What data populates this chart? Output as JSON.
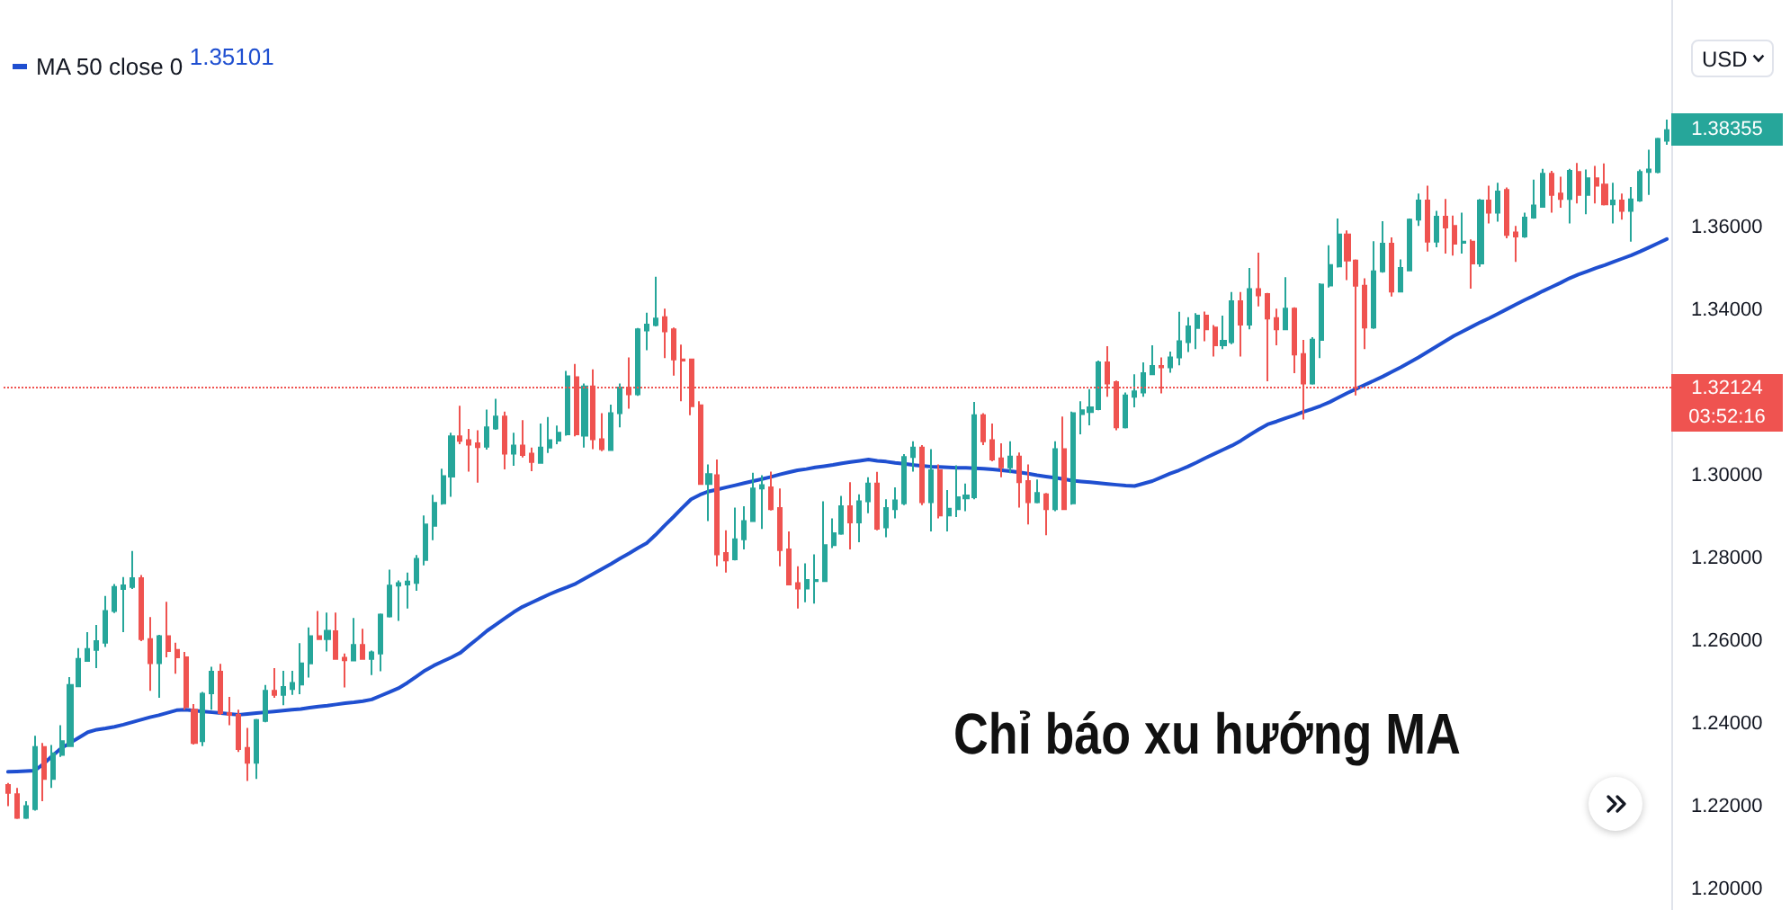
{
  "chart_data": {
    "type": "candlestick",
    "title": "Chỉ báo xu hướng MA",
    "ylabel": "USD",
    "categories": [
      null,
      null,
      null,
      null,
      null,
      null,
      null,
      null,
      null,
      null,
      null,
      null,
      null,
      null,
      null,
      null,
      null,
      null,
      null,
      null,
      null,
      null,
      null,
      null,
      null,
      null,
      null,
      null,
      null,
      null,
      null,
      null,
      null,
      null,
      null,
      null,
      null,
      null,
      null,
      null,
      null,
      null,
      null,
      null,
      null,
      null,
      null,
      null,
      null,
      null,
      null,
      null,
      null,
      null,
      null,
      null,
      null,
      null,
      null,
      null,
      null,
      null,
      null,
      null,
      null,
      null,
      null,
      null,
      null,
      null,
      null,
      null,
      null,
      null,
      null,
      null,
      null,
      null,
      null,
      null,
      null,
      null,
      null,
      null,
      null,
      null,
      null,
      null,
      null,
      null,
      null,
      null,
      null,
      null,
      null,
      null,
      null,
      null,
      null,
      null,
      null,
      null,
      null,
      null,
      null,
      null,
      null,
      null,
      null,
      null,
      null,
      null,
      null,
      null,
      null,
      null,
      null,
      null,
      null,
      null,
      null,
      null,
      null,
      null,
      null,
      null,
      null,
      null,
      null,
      null,
      null,
      null,
      null,
      null,
      null,
      null,
      null,
      null,
      null,
      null,
      null,
      null,
      null,
      null,
      null,
      null,
      null,
      null,
      null,
      null,
      null,
      null,
      null,
      null,
      null,
      null,
      null,
      null,
      null,
      null,
      null,
      null,
      null,
      null,
      null,
      null,
      null,
      null,
      null,
      null,
      null,
      null,
      null,
      null,
      null,
      null,
      null,
      null,
      null,
      null,
      null,
      null,
      null,
      null,
      null,
      null,
      null,
      null
    ],
    "ohlc": [
      [
        1.2252,
        1.2257,
        1.2201,
        1.2233
      ],
      [
        1.223,
        1.2245,
        1.217,
        1.2173
      ],
      [
        1.2173,
        1.2213,
        1.217,
        1.2201
      ],
      [
        1.2194,
        1.2371,
        1.219,
        1.2344
      ],
      [
        1.2344,
        1.2354,
        1.2213,
        1.2267
      ],
      [
        1.2267,
        1.2349,
        1.2245,
        1.2329
      ],
      [
        1.2325,
        1.2397,
        1.232,
        1.2358
      ],
      [
        1.2346,
        1.2513,
        1.2344,
        1.2494
      ],
      [
        1.2491,
        1.2583,
        1.2489,
        1.2557
      ],
      [
        1.2552,
        1.2622,
        1.2552,
        1.2581
      ],
      [
        1.2579,
        1.2639,
        1.2535,
        1.26
      ],
      [
        1.2596,
        1.2709,
        1.2586,
        1.2673
      ],
      [
        1.2673,
        1.2738,
        1.2668,
        1.2731
      ],
      [
        1.2726,
        1.2755,
        1.2622,
        1.2735
      ],
      [
        1.2731,
        1.2818,
        1.2726,
        1.2752
      ],
      [
        1.2752,
        1.276,
        1.26,
        1.2605
      ],
      [
        1.2605,
        1.2658,
        1.248,
        1.2547
      ],
      [
        1.2547,
        1.2615,
        1.2463,
        1.2612
      ],
      [
        1.2612,
        1.2695,
        1.2561,
        1.2576
      ],
      [
        1.2579,
        1.2596,
        1.2521,
        1.2561
      ],
      [
        1.2561,
        1.2574,
        1.2434,
        1.2441
      ],
      [
        1.2434,
        1.2448,
        1.235,
        1.2354
      ],
      [
        1.2358,
        1.2477,
        1.2346,
        1.2473
      ],
      [
        1.2474,
        1.2538,
        1.2434,
        1.2526
      ],
      [
        1.2526,
        1.2545,
        1.2422,
        1.2426
      ],
      [
        1.2426,
        1.2465,
        1.2397,
        1.2422
      ],
      [
        1.2422,
        1.2434,
        1.2332,
        1.2339
      ],
      [
        1.2342,
        1.239,
        1.2262,
        1.2306
      ],
      [
        1.2306,
        1.2412,
        1.2267,
        1.2409
      ],
      [
        1.2407,
        1.2494,
        1.2404,
        1.248
      ],
      [
        1.248,
        1.2535,
        1.2463,
        1.247
      ],
      [
        1.247,
        1.2528,
        1.2445,
        1.2489
      ],
      [
        1.2484,
        1.2528,
        1.247,
        1.2499
      ],
      [
        1.2495,
        1.2595,
        1.2472,
        1.2546
      ],
      [
        1.2546,
        1.2633,
        1.2512,
        1.2612
      ],
      [
        1.2612,
        1.2673,
        1.2603,
        1.2605
      ],
      [
        1.2605,
        1.2669,
        1.2575,
        1.2625
      ],
      [
        1.2624,
        1.2669,
        1.2555,
        1.2557
      ],
      [
        1.256,
        1.257,
        1.2488,
        1.2554
      ],
      [
        1.2553,
        1.2656,
        1.2551,
        1.2591
      ],
      [
        1.2591,
        1.263,
        1.2555,
        1.2557
      ],
      [
        1.2557,
        1.2577,
        1.2518,
        1.2573
      ],
      [
        1.257,
        1.2667,
        1.2527,
        1.2664
      ],
      [
        1.266,
        1.2773,
        1.2657,
        1.2734
      ],
      [
        1.2734,
        1.2747,
        1.2649,
        1.274
      ],
      [
        1.2737,
        1.2766,
        1.2679,
        1.2744
      ],
      [
        1.2741,
        1.2808,
        1.2722,
        1.2799
      ],
      [
        1.2796,
        1.2904,
        1.2783,
        1.2882
      ],
      [
        1.2879,
        1.2954,
        1.2844,
        1.2934
      ],
      [
        1.2933,
        1.3017,
        1.293,
        1.2999
      ],
      [
        1.2998,
        1.3104,
        1.2949,
        1.3095
      ],
      [
        1.3095,
        1.3169,
        1.3076,
        1.3084
      ],
      [
        1.3086,
        1.3113,
        1.301,
        1.3075
      ],
      [
        1.3078,
        1.311,
        1.2983,
        1.3069
      ],
      [
        1.307,
        1.316,
        1.3063,
        1.3117
      ],
      [
        1.3114,
        1.3186,
        1.3111,
        1.3143
      ],
      [
        1.3143,
        1.3155,
        1.3015,
        1.3053
      ],
      [
        1.3053,
        1.3104,
        1.3024,
        1.3073
      ],
      [
        1.3073,
        1.3134,
        1.3044,
        1.305
      ],
      [
        1.3053,
        1.3068,
        1.3011,
        1.3033
      ],
      [
        1.3031,
        1.3126,
        1.3029,
        1.3068
      ],
      [
        1.3068,
        1.3142,
        1.3055,
        1.3086
      ],
      [
        1.3085,
        1.3121,
        1.3076,
        1.3104
      ],
      [
        1.31,
        1.3253,
        1.3097,
        1.324
      ],
      [
        1.3238,
        1.327,
        1.3095,
        1.31
      ],
      [
        1.3097,
        1.3223,
        1.3068,
        1.3216
      ],
      [
        1.3216,
        1.3257,
        1.3064,
        1.3088
      ],
      [
        1.3088,
        1.3151,
        1.3059,
        1.3064
      ],
      [
        1.3062,
        1.3172,
        1.306,
        1.3151
      ],
      [
        1.3151,
        1.3223,
        1.3117,
        1.3213
      ],
      [
        1.3213,
        1.3286,
        1.3162,
        1.3197
      ],
      [
        1.3197,
        1.3357,
        1.3193,
        1.3354
      ],
      [
        1.3351,
        1.3394,
        1.3303,
        1.3365
      ],
      [
        1.3364,
        1.3481,
        1.3361,
        1.338
      ],
      [
        1.3383,
        1.3404,
        1.3284,
        1.3349
      ],
      [
        1.3354,
        1.3358,
        1.3242,
        1.3281
      ],
      [
        1.3281,
        1.3317,
        1.318,
        1.3278
      ],
      [
        1.3281,
        1.3283,
        1.3146,
        1.3168
      ],
      [
        1.317,
        1.318,
        1.2978,
        1.298
      ],
      [
        1.298,
        1.3027,
        1.289,
        1.3004
      ],
      [
        1.3001,
        1.3039,
        1.2781,
        1.281
      ],
      [
        1.2813,
        1.2868,
        1.2766,
        1.2795
      ],
      [
        1.2798,
        1.2923,
        1.2795,
        1.2846
      ],
      [
        1.2846,
        1.2926,
        1.2822,
        1.289
      ],
      [
        1.289,
        1.3007,
        1.2888,
        1.2969
      ],
      [
        1.2969,
        1.3001,
        1.2871,
        1.2977
      ],
      [
        1.2972,
        1.301,
        1.2916,
        1.2919
      ],
      [
        1.2922,
        1.2969,
        1.2781,
        1.282
      ],
      [
        1.2822,
        1.2865,
        1.2735,
        1.2737
      ],
      [
        1.274,
        1.2781,
        1.2679,
        1.2727
      ],
      [
        1.2727,
        1.2788,
        1.2694,
        1.2748
      ],
      [
        1.2745,
        1.281,
        1.2691,
        1.2748
      ],
      [
        1.2745,
        1.2938,
        1.2743,
        1.2832
      ],
      [
        1.2832,
        1.2897,
        1.2825,
        1.2861
      ],
      [
        1.286,
        1.2951,
        1.2857,
        1.2926
      ],
      [
        1.2926,
        1.2984,
        1.2822,
        1.2887
      ],
      [
        1.2887,
        1.2955,
        1.2839,
        1.2938
      ],
      [
        1.2938,
        1.2996,
        1.2909,
        1.2981
      ],
      [
        1.2981,
        1.3009,
        1.2868,
        1.2872
      ],
      [
        1.2875,
        1.2943,
        1.2851,
        1.2922
      ],
      [
        1.2919,
        1.2972,
        1.2897,
        1.294
      ],
      [
        1.2933,
        1.3052,
        1.2929,
        1.3045
      ],
      [
        1.3045,
        1.3083,
        1.301,
        1.3068
      ],
      [
        1.3068,
        1.3074,
        1.2929,
        1.2936
      ],
      [
        1.2936,
        1.3064,
        1.2865,
        1.3013
      ],
      [
        1.3013,
        1.3027,
        1.2897,
        1.2904
      ],
      [
        1.2904,
        1.2965,
        1.2865,
        1.292
      ],
      [
        1.2919,
        1.3025,
        1.29,
        1.2948
      ],
      [
        1.2945,
        1.2981,
        1.2914,
        1.2952
      ],
      [
        1.2948,
        1.3178,
        1.2943,
        1.3146
      ],
      [
        1.3146,
        1.3151,
        1.3074,
        1.3083
      ],
      [
        1.3086,
        1.3126,
        1.3035,
        1.3039
      ],
      [
        1.3042,
        1.3078,
        1.2996,
        1.302
      ],
      [
        1.302,
        1.3083,
        1.3006,
        1.3046
      ],
      [
        1.3046,
        1.3056,
        1.2923,
        1.2984
      ],
      [
        1.2987,
        1.3027,
        1.2882,
        1.2936
      ],
      [
        1.2936,
        1.2991,
        1.2933,
        1.2958
      ],
      [
        1.2955,
        1.2958,
        1.2856,
        1.2919
      ],
      [
        1.2919,
        1.3083,
        1.2914,
        1.3064
      ],
      [
        1.3064,
        1.3143,
        1.2917,
        1.2919
      ],
      [
        1.2933,
        1.3155,
        1.293,
        1.3151
      ],
      [
        1.3149,
        1.318,
        1.31,
        1.3158
      ],
      [
        1.3154,
        1.3209,
        1.3122,
        1.3165
      ],
      [
        1.3161,
        1.3278,
        1.3158,
        1.3274
      ],
      [
        1.3274,
        1.3313,
        1.3191,
        1.3223
      ],
      [
        1.3226,
        1.323,
        1.311,
        1.3117
      ],
      [
        1.3117,
        1.3201,
        1.3114,
        1.3194
      ],
      [
        1.3191,
        1.3245,
        1.3165,
        1.3204
      ],
      [
        1.3201,
        1.3274,
        1.3191,
        1.3248
      ],
      [
        1.3245,
        1.3315,
        1.3244,
        1.3265
      ],
      [
        1.3265,
        1.3286,
        1.3199,
        1.3262
      ],
      [
        1.3262,
        1.33,
        1.3249,
        1.3286
      ],
      [
        1.3286,
        1.3396,
        1.3267,
        1.3325
      ],
      [
        1.3323,
        1.3383,
        1.3299,
        1.3361
      ],
      [
        1.3357,
        1.3393,
        1.3306,
        1.3387
      ],
      [
        1.3387,
        1.3397,
        1.3325,
        1.3354
      ],
      [
        1.3358,
        1.3364,
        1.3288,
        1.3315
      ],
      [
        1.3315,
        1.3387,
        1.3306,
        1.3326
      ],
      [
        1.3323,
        1.3444,
        1.3318,
        1.3422
      ],
      [
        1.3422,
        1.3444,
        1.3288,
        1.3365
      ],
      [
        1.3365,
        1.3502,
        1.3354,
        1.3451
      ],
      [
        1.3451,
        1.3539,
        1.3409,
        1.3436
      ],
      [
        1.3439,
        1.3442,
        1.3228,
        1.338
      ],
      [
        1.3381,
        1.3404,
        1.3315,
        1.3354
      ],
      [
        1.3354,
        1.348,
        1.3352,
        1.3404
      ],
      [
        1.3404,
        1.3407,
        1.3248,
        1.3293
      ],
      [
        1.3294,
        1.3328,
        1.3136,
        1.3223
      ],
      [
        1.3223,
        1.3335,
        1.322,
        1.3329
      ],
      [
        1.3328,
        1.3465,
        1.3284,
        1.3462
      ],
      [
        1.346,
        1.3557,
        1.3455,
        1.3509
      ],
      [
        1.3506,
        1.3622,
        1.3503,
        1.3583
      ],
      [
        1.3583,
        1.3593,
        1.3473,
        1.352
      ],
      [
        1.352,
        1.3523,
        1.3194,
        1.3459
      ],
      [
        1.3459,
        1.3477,
        1.3306,
        1.3358
      ],
      [
        1.3358,
        1.3567,
        1.3355,
        1.3494
      ],
      [
        1.3494,
        1.3615,
        1.3491,
        1.3561
      ],
      [
        1.3561,
        1.3576,
        1.3433,
        1.3445
      ],
      [
        1.3445,
        1.3523,
        1.3443,
        1.3502
      ],
      [
        1.3496,
        1.3622,
        1.3494,
        1.3619
      ],
      [
        1.3619,
        1.3682,
        1.3604,
        1.3665
      ],
      [
        1.3665,
        1.3701,
        1.3542,
        1.3566
      ],
      [
        1.3566,
        1.364,
        1.3552,
        1.3626
      ],
      [
        1.3626,
        1.3669,
        1.3537,
        1.36
      ],
      [
        1.3604,
        1.3629,
        1.3532,
        1.3561
      ],
      [
        1.3563,
        1.3636,
        1.3537,
        1.3566
      ],
      [
        1.3566,
        1.3571,
        1.3452,
        1.3513
      ],
      [
        1.3513,
        1.3669,
        1.3505,
        1.3665
      ],
      [
        1.3665,
        1.3701,
        1.361,
        1.3636
      ],
      [
        1.3636,
        1.3708,
        1.3614,
        1.3687
      ],
      [
        1.3691,
        1.3697,
        1.3574,
        1.3582
      ],
      [
        1.3588,
        1.3604,
        1.3517,
        1.3578
      ],
      [
        1.3578,
        1.3636,
        1.3575,
        1.3624
      ],
      [
        1.3624,
        1.3716,
        1.3621,
        1.3653
      ],
      [
        1.365,
        1.3742,
        1.3648,
        1.373
      ],
      [
        1.373,
        1.3737,
        1.3636,
        1.3679
      ],
      [
        1.3682,
        1.3723,
        1.3648,
        1.3669
      ],
      [
        1.3669,
        1.3742,
        1.361,
        1.3737
      ],
      [
        1.3734,
        1.3756,
        1.3658,
        1.3679
      ],
      [
        1.3679,
        1.374,
        1.3632,
        1.3719
      ],
      [
        1.3719,
        1.3749,
        1.3658,
        1.3701
      ],
      [
        1.3704,
        1.3755,
        1.3653,
        1.3656
      ],
      [
        1.3656,
        1.3708,
        1.361,
        1.3665
      ],
      [
        1.3665,
        1.3682,
        1.3619,
        1.364
      ],
      [
        1.364,
        1.3698,
        1.3566,
        1.3668
      ],
      [
        1.3665,
        1.374,
        1.3662,
        1.3734
      ],
      [
        1.3734,
        1.3788,
        1.3679,
        1.374
      ],
      [
        1.3734,
        1.3817,
        1.3731,
        1.3814
      ],
      [
        1.381,
        1.3861,
        1.38,
        1.38355
      ]
    ],
    "colors": [
      "#ef5350",
      "#ef5350",
      "#26a69a",
      "#26a69a",
      "#ef5350",
      "#26a69a",
      "#26a69a",
      "#26a69a",
      "#26a69a",
      "#26a69a",
      "#26a69a",
      "#26a69a",
      "#26a69a",
      "#26a69a",
      "#26a69a",
      "#ef5350",
      "#ef5350",
      "#26a69a",
      "#ef5350",
      "#ef5350",
      "#ef5350",
      "#ef5350",
      "#26a69a",
      "#26a69a",
      "#ef5350",
      "#ef5350",
      "#ef5350",
      "#ef5350",
      "#26a69a",
      "#26a69a",
      "#ef5350",
      "#26a69a",
      "#26a69a",
      "#26a69a",
      "#26a69a",
      "#ef5350",
      "#26a69a",
      "#ef5350",
      "#ef5350",
      "#26a69a",
      "#ef5350",
      "#26a69a",
      "#26a69a",
      "#26a69a",
      "#26a69a",
      "#26a69a",
      "#26a69a",
      "#26a69a",
      "#26a69a",
      "#26a69a",
      "#26a69a",
      "#ef5350",
      "#ef5350",
      "#ef5350",
      "#26a69a",
      "#26a69a",
      "#ef5350",
      "#26a69a",
      "#ef5350",
      "#ef5350",
      "#26a69a",
      "#26a69a",
      "#26a69a",
      "#26a69a",
      "#ef5350",
      "#26a69a",
      "#ef5350",
      "#ef5350",
      "#26a69a",
      "#26a69a",
      "#ef5350",
      "#26a69a",
      "#26a69a",
      "#26a69a",
      "#ef5350",
      "#ef5350",
      "#ef5350",
      "#ef5350",
      "#ef5350",
      "#26a69a",
      "#ef5350",
      "#ef5350",
      "#26a69a",
      "#26a69a",
      "#26a69a",
      "#26a69a",
      "#ef5350",
      "#ef5350",
      "#ef5350",
      "#ef5350",
      "#26a69a",
      "#26a69a",
      "#26a69a",
      "#26a69a",
      "#26a69a",
      "#ef5350",
      "#26a69a",
      "#26a69a",
      "#ef5350",
      "#26a69a",
      "#26a69a",
      "#26a69a",
      "#26a69a",
      "#ef5350",
      "#26a69a",
      "#ef5350",
      "#26a69a",
      "#26a69a",
      "#26a69a",
      "#26a69a",
      "#ef5350",
      "#ef5350",
      "#ef5350",
      "#26a69a",
      "#ef5350",
      "#ef5350",
      "#26a69a",
      "#ef5350",
      "#26a69a",
      "#ef5350",
      "#26a69a",
      "#26a69a",
      "#26a69a",
      "#26a69a",
      "#ef5350",
      "#ef5350",
      "#26a69a",
      "#26a69a",
      "#26a69a",
      "#26a69a",
      "#ef5350",
      "#26a69a",
      "#26a69a",
      "#26a69a",
      "#26a69a",
      "#ef5350",
      "#ef5350",
      "#26a69a",
      "#26a69a",
      "#ef5350",
      "#26a69a",
      "#ef5350",
      "#ef5350",
      "#ef5350",
      "#26a69a",
      "#ef5350",
      "#ef5350",
      "#26a69a",
      "#26a69a",
      "#26a69a",
      "#26a69a",
      "#ef5350",
      "#ef5350",
      "#ef5350",
      "#26a69a",
      "#26a69a",
      "#ef5350",
      "#26a69a",
      "#26a69a",
      "#26a69a",
      "#ef5350",
      "#26a69a",
      "#ef5350",
      "#ef5350",
      "#26a69a",
      "#ef5350",
      "#26a69a",
      "#ef5350",
      "#26a69a",
      "#ef5350",
      "#ef5350",
      "#26a69a",
      "#26a69a",
      "#26a69a",
      "#ef5350",
      "#ef5350",
      "#26a69a",
      "#ef5350",
      "#26a69a",
      "#ef5350",
      "#ef5350",
      "#26a69a",
      "#ef5350",
      "#26a69a",
      "#26a69a",
      "#26a69a",
      "#26a69a",
      "#26a69a"
    ],
    "series": [
      {
        "type": "line",
        "name": "MA 50 close 0",
        "color": "#1f4fd0",
        "values": [
          1.2284,
          1.2285,
          1.2286,
          1.2287,
          1.2303,
          1.2323,
          1.2341,
          1.2354,
          1.2367,
          1.238,
          1.2386,
          1.2389,
          1.2393,
          1.2398,
          1.2404,
          1.241,
          1.2416,
          1.2421,
          1.2427,
          1.2433,
          1.2434,
          1.2432,
          1.243,
          1.2428,
          1.2426,
          1.2424,
          1.2422,
          1.2424,
          1.2426,
          1.2428,
          1.243,
          1.2432,
          1.2434,
          1.2436,
          1.2439,
          1.2442,
          1.2444,
          1.2447,
          1.245,
          1.2452,
          1.2455,
          1.2459,
          1.2468,
          1.2477,
          1.2486,
          1.2499,
          1.2514,
          1.2529,
          1.2541,
          1.2551,
          1.2561,
          1.2572,
          1.259,
          1.2607,
          1.2625,
          1.264,
          1.2655,
          1.267,
          1.2683,
          1.2693,
          1.2703,
          1.2713,
          1.2722,
          1.273,
          1.2739,
          1.2751,
          1.2763,
          1.2775,
          1.2787,
          1.28,
          1.2812,
          1.2825,
          1.2837,
          1.2857,
          1.2879,
          1.29,
          1.2922,
          1.2943,
          1.2954,
          1.2962,
          1.2967,
          1.2972,
          1.2977,
          1.2982,
          1.2987,
          1.2992,
          1.2997,
          1.3003,
          1.3008,
          1.3013,
          1.3016,
          1.302,
          1.3023,
          1.3026,
          1.303,
          1.3033,
          1.3036,
          1.3039,
          1.3036,
          1.3034,
          1.3031,
          1.3029,
          1.3026,
          1.3024,
          1.3022,
          1.3021,
          1.302,
          1.3019,
          1.3019,
          1.3018,
          1.3017,
          1.3015,
          1.3013,
          1.3011,
          1.3008,
          1.3005,
          1.3001,
          1.2998,
          1.2995,
          1.2992,
          1.2988,
          1.2986,
          1.2984,
          1.2982,
          1.298,
          1.2978,
          1.2976,
          1.2975,
          1.2981,
          1.2987,
          1.2996,
          1.3005,
          1.3013,
          1.3022,
          1.3032,
          1.3043,
          1.3053,
          1.3063,
          1.3073,
          1.3085,
          1.3099,
          1.3112,
          1.3124,
          1.3131,
          1.3139,
          1.3146,
          1.3154,
          1.3161,
          1.3169,
          1.3178,
          1.3189,
          1.32,
          1.321,
          1.322,
          1.323,
          1.324,
          1.3251,
          1.3262,
          1.3274,
          1.3286,
          1.3299,
          1.3312,
          1.3325,
          1.3338,
          1.3349,
          1.336,
          1.3371,
          1.3381,
          1.3392,
          1.3403,
          1.3414,
          1.3425,
          1.3435,
          1.3446,
          1.3456,
          1.3466,
          1.3477,
          1.3486,
          1.3494,
          1.3502,
          1.3509,
          1.3517,
          1.3525,
          1.3533,
          1.3542,
          1.3552,
          1.3562,
          1.3572
        ]
      }
    ],
    "ylim": [
      1.195,
      1.415
    ],
    "yticks": [
      {
        "value": 1.2,
        "label": "1.20000"
      },
      {
        "value": 1.22,
        "label": "1.22000"
      },
      {
        "value": 1.24,
        "label": "1.24000"
      },
      {
        "value": 1.26,
        "label": "1.26000"
      },
      {
        "value": 1.28,
        "label": "1.28000"
      },
      {
        "value": 1.3,
        "label": "1.30000"
      },
      {
        "value": 1.34,
        "label": "1.34000"
      },
      {
        "value": 1.36,
        "label": "1.36000"
      }
    ],
    "tick_labels": "y",
    "legend": "top left",
    "marker": "none",
    "ref_lines": [
      {
        "axis": "y",
        "value": 1.32124,
        "label": "1.32124",
        "color": "#ef5350",
        "line_style": "dotted"
      }
    ],
    "annotations": [
      "1.35101",
      "03:52:16",
      "1.38355"
    ]
  }
}
